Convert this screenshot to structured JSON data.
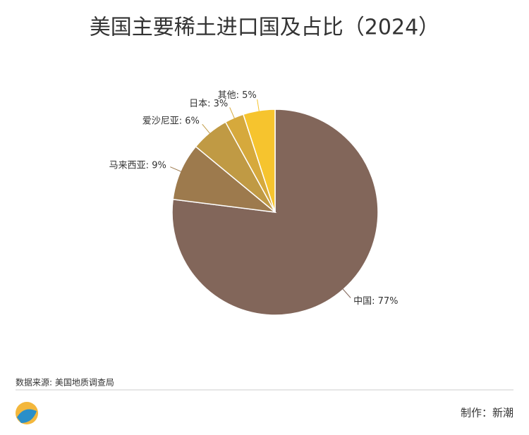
{
  "chart_data": {
    "type": "pie",
    "title": "美国主要稀土进口国及占比（2024）",
    "categories": [
      "中国",
      "马来西亚",
      "爱沙尼亚",
      "日本",
      "其他"
    ],
    "values": [
      77,
      9,
      6,
      3,
      5
    ],
    "value_labels": [
      "77%",
      "9%",
      "6%",
      "3%",
      "5%"
    ],
    "colors": [
      "#82665a",
      "#9d7a4d",
      "#c09a44",
      "#d6a93c",
      "#f6c42e"
    ],
    "source": "数据来源: 美国地质调查局",
    "credit": "制作：新潮"
  }
}
